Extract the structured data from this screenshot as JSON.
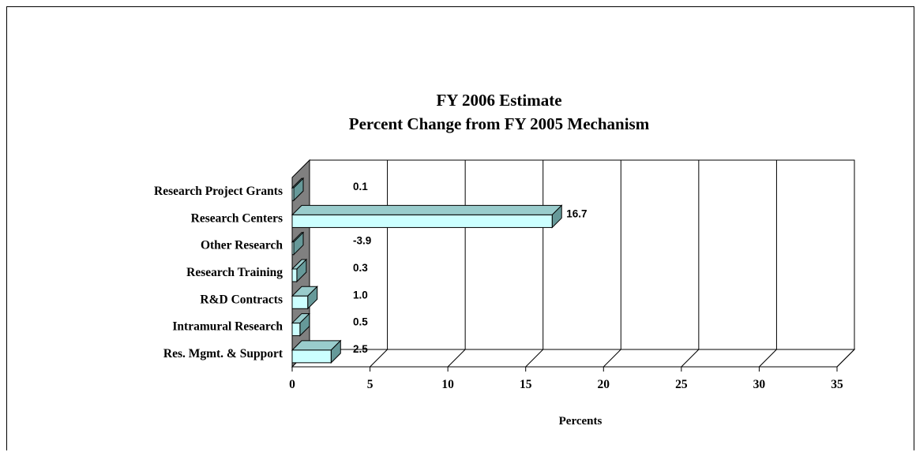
{
  "chart_data": {
    "type": "bar",
    "orientation": "horizontal",
    "style": "3d",
    "title": "FY 2006 Estimate",
    "subtitle": "Percent Change from FY 2005 Mechanism",
    "categories": [
      "Research Project Grants",
      "Research Centers",
      "Other Research",
      "Research Training",
      "R&D Contracts",
      "Intramural Research",
      "Res. Mgmt. & Support"
    ],
    "values": [
      0.1,
      16.7,
      -3.9,
      0.3,
      1.0,
      0.5,
      2.5
    ],
    "data_labels": [
      "0.1",
      "16.7",
      "-3.9",
      "0.3",
      "1.0",
      "0.5",
      "2.5"
    ],
    "xlabel": "Percents",
    "xlim": [
      0,
      35
    ],
    "xticks": [
      "0",
      "5",
      "10",
      "15",
      "20",
      "25",
      "30",
      "35"
    ],
    "grid": "vertical",
    "legend": "none",
    "colors": {
      "bar_front": "#ccffff",
      "bar_side": "#669999",
      "bar_top": "#99cccc",
      "wall": "#808080",
      "grid": "#000000"
    }
  }
}
